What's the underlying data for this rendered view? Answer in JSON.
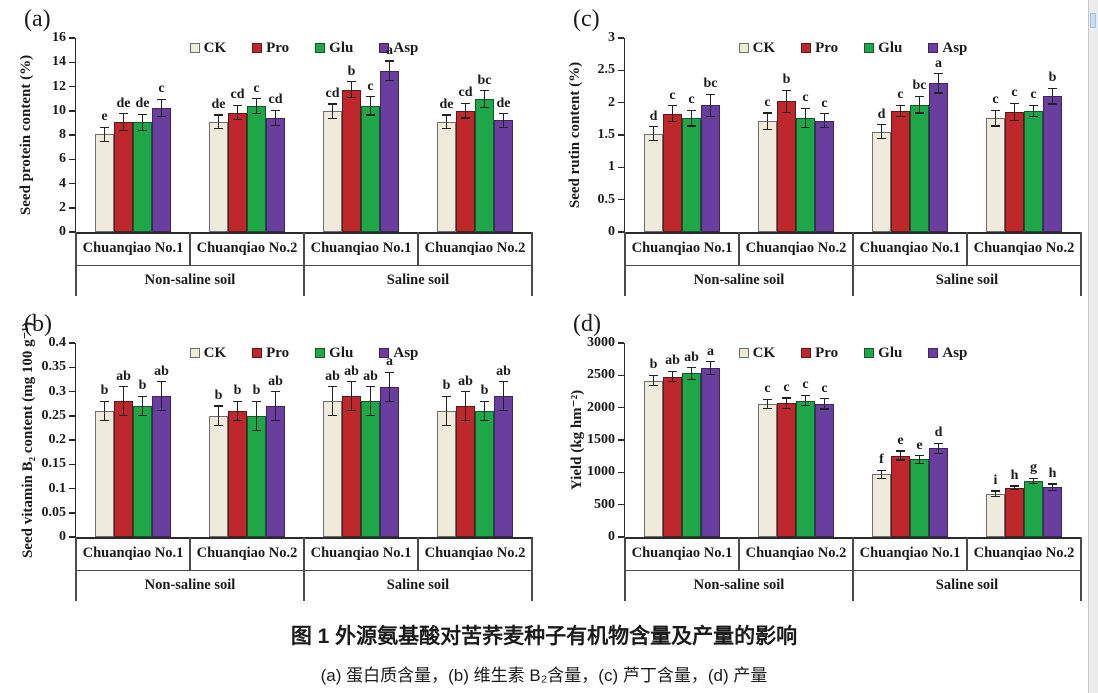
{
  "figure": {
    "caption_title": "图 1 外源氨基酸对苦荞麦种子有机物含量及产量的影响",
    "caption_subtitle": "(a) 蛋白质含量，(b) 维生素 B₂含量，(c) 芦丁含量，(d) 产量"
  },
  "legend": {
    "position": "top-center",
    "items": [
      {
        "label": "CK",
        "color": "#EFEBDC",
        "border": "#6E6E6E"
      },
      {
        "label": "Pro",
        "color": "#BE282D",
        "border": "#5A1A1C"
      },
      {
        "label": "Glu",
        "color": "#1FA648",
        "border": "#0F5A28"
      },
      {
        "label": "Asp",
        "color": "#6A3E9E",
        "border": "#3E2460"
      }
    ]
  },
  "chart_data": [
    {
      "panel": "(a)",
      "type": "bar",
      "title": "",
      "xlabel": "",
      "ylabel": "Seed protein content (%)",
      "ylim": [
        0,
        16
      ],
      "yticks": [
        "0",
        "2",
        "4",
        "6",
        "8",
        "10",
        "12",
        "14",
        "16"
      ],
      "grid": false,
      "legend_position": "top-center",
      "categories": [
        "Chuanqiao No.1",
        "Chuanqiao No.2",
        "Chuanqiao No.1",
        "Chuanqiao No.2"
      ],
      "category_groups": [
        "Non-saline soil",
        "Saline soil"
      ],
      "series": [
        {
          "name": "CK",
          "values": [
            8.05,
            9.1,
            9.95,
            9.1
          ],
          "errors": [
            0.6,
            0.55,
            0.6,
            0.55
          ],
          "letters": [
            "e",
            "de",
            "cd",
            "de"
          ]
        },
        {
          "name": "Pro",
          "values": [
            9.05,
            9.85,
            11.75,
            10.0
          ],
          "errors": [
            0.7,
            0.6,
            0.65,
            0.6
          ],
          "letters": [
            "de",
            "cd",
            "b",
            "cd"
          ]
        },
        {
          "name": "Glu",
          "values": [
            9.05,
            10.4,
            10.4,
            10.95
          ],
          "errors": [
            0.65,
            0.6,
            0.75,
            0.7
          ],
          "letters": [
            "de",
            "c",
            "c",
            "bc"
          ]
        },
        {
          "name": "Asp",
          "values": [
            10.25,
            9.4,
            13.3,
            9.2
          ],
          "errors": [
            0.7,
            0.65,
            0.8,
            0.55
          ],
          "letters": [
            "c",
            "cd",
            "a",
            "de"
          ]
        }
      ]
    },
    {
      "panel": "(b)",
      "type": "bar",
      "title": "",
      "xlabel": "",
      "ylabel": "Seed vitamin B₂ content (mg 100 g⁻¹)",
      "ylim": [
        0,
        0.4
      ],
      "yticks": [
        "0",
        "0.05",
        "0.1",
        "0.15",
        "0.2",
        "0.25",
        "0.3",
        "0.35",
        "0.4"
      ],
      "grid": false,
      "legend_position": "top-center",
      "categories": [
        "Chuanqiao No.1",
        "Chuanqiao No.2",
        "Chuanqiao No.1",
        "Chuanqiao No.2"
      ],
      "category_groups": [
        "Non-saline soil",
        "Saline soil"
      ],
      "series": [
        {
          "name": "CK",
          "values": [
            0.26,
            0.25,
            0.28,
            0.26
          ],
          "errors": [
            0.02,
            0.02,
            0.03,
            0.03
          ],
          "letters": [
            "b",
            "b",
            "ab",
            "b"
          ]
        },
        {
          "name": "Pro",
          "values": [
            0.28,
            0.26,
            0.29,
            0.27
          ],
          "errors": [
            0.03,
            0.02,
            0.03,
            0.03
          ],
          "letters": [
            "ab",
            "b",
            "ab",
            "ab"
          ]
        },
        {
          "name": "Glu",
          "values": [
            0.27,
            0.25,
            0.28,
            0.26
          ],
          "errors": [
            0.02,
            0.03,
            0.03,
            0.02
          ],
          "letters": [
            "b",
            "b",
            "ab",
            "b"
          ]
        },
        {
          "name": "Asp",
          "values": [
            0.29,
            0.27,
            0.31,
            0.29
          ],
          "errors": [
            0.03,
            0.03,
            0.03,
            0.03
          ],
          "letters": [
            "ab",
            "ab",
            "a",
            "ab"
          ]
        }
      ]
    },
    {
      "panel": "(c)",
      "type": "bar",
      "title": "",
      "xlabel": "",
      "ylabel": "Seed rutin content (%)",
      "ylim": [
        0,
        3
      ],
      "yticks": [
        "0",
        "0.5",
        "1",
        "1.5",
        "2",
        "2.5",
        "3"
      ],
      "grid": false,
      "legend_position": "top-center",
      "categories": [
        "Chuanqiao No.1",
        "Chuanqiao No.2",
        "Chuanqiao No.1",
        "Chuanqiao No.2"
      ],
      "category_groups": [
        "Non-saline soil",
        "Saline soil"
      ],
      "series": [
        {
          "name": "CK",
          "values": [
            1.52,
            1.71,
            1.55,
            1.76
          ],
          "errors": [
            0.11,
            0.13,
            0.11,
            0.12
          ],
          "letters": [
            "d",
            "c",
            "d",
            "c"
          ]
        },
        {
          "name": "Pro",
          "values": [
            1.83,
            2.02,
            1.87,
            1.86
          ],
          "errors": [
            0.12,
            0.17,
            0.09,
            0.13
          ],
          "letters": [
            "c",
            "b",
            "c",
            "c"
          ]
        },
        {
          "name": "Glu",
          "values": [
            1.76,
            1.76,
            1.97,
            1.87
          ],
          "errors": [
            0.12,
            0.15,
            0.13,
            0.09
          ],
          "letters": [
            "c",
            "c",
            "bc",
            "c"
          ]
        },
        {
          "name": "Asp",
          "values": [
            1.96,
            1.72,
            2.3,
            2.1
          ],
          "errors": [
            0.17,
            0.11,
            0.15,
            0.12
          ],
          "letters": [
            "bc",
            "c",
            "a",
            "b"
          ]
        }
      ]
    },
    {
      "panel": "(d)",
      "type": "bar",
      "title": "",
      "xlabel": "",
      "ylabel": "Yield (kg hm⁻²)",
      "ylim": [
        0,
        3000
      ],
      "yticks": [
        "0",
        "500",
        "1000",
        "1500",
        "2000",
        "2500",
        "3000"
      ],
      "grid": false,
      "legend_position": "top-center",
      "categories": [
        "Chuanqiao No.1",
        "Chuanqiao No.2",
        "Chuanqiao No.1",
        "Chuanqiao No.2"
      ],
      "category_groups": [
        "Non-saline soil",
        "Saline soil"
      ],
      "series": [
        {
          "name": "CK",
          "values": [
            2420,
            2060,
            970,
            670
          ],
          "errors": [
            80,
            70,
            60,
            40
          ],
          "letters": [
            "b",
            "c",
            "f",
            "i"
          ]
        },
        {
          "name": "Pro",
          "values": [
            2480,
            2070,
            1260,
            760
          ],
          "errors": [
            80,
            80,
            70,
            30
          ],
          "letters": [
            "ab",
            "c",
            "e",
            "h"
          ]
        },
        {
          "name": "Glu",
          "values": [
            2530,
            2110,
            1200,
            870
          ],
          "errors": [
            90,
            80,
            60,
            40
          ],
          "letters": [
            "ab",
            "c",
            "e",
            "g"
          ]
        },
        {
          "name": "Asp",
          "values": [
            2610,
            2060,
            1370,
            770
          ],
          "errors": [
            100,
            80,
            80,
            50
          ],
          "letters": [
            "a",
            "c",
            "d",
            "h"
          ]
        }
      ]
    }
  ]
}
